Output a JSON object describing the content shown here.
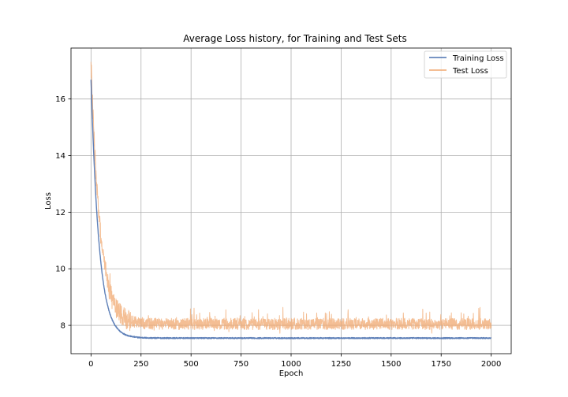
{
  "chart_data": {
    "type": "line",
    "title": "Average Loss history, for Training and Test Sets",
    "xlabel": "Epoch",
    "ylabel": "Loss",
    "xlim": [
      -100,
      2100
    ],
    "ylim": [
      7.0,
      17.8
    ],
    "xticks": [
      0,
      250,
      500,
      750,
      1000,
      1250,
      1500,
      1750,
      2000
    ],
    "yticks": [
      8,
      10,
      12,
      14,
      16
    ],
    "grid": true,
    "legend_position": "top-right",
    "series": [
      {
        "name": "Training Loss",
        "color": "#4c72b0",
        "start": 16.7,
        "plateau": 7.55,
        "decay_epochs": 40,
        "noise": 0.02,
        "epochs": 2000
      },
      {
        "name": "Test Loss",
        "color": "#f0a870",
        "start": 17.3,
        "plateau": 8.05,
        "decay_epochs": 45,
        "noise": 0.2,
        "epochs": 2000
      }
    ]
  }
}
